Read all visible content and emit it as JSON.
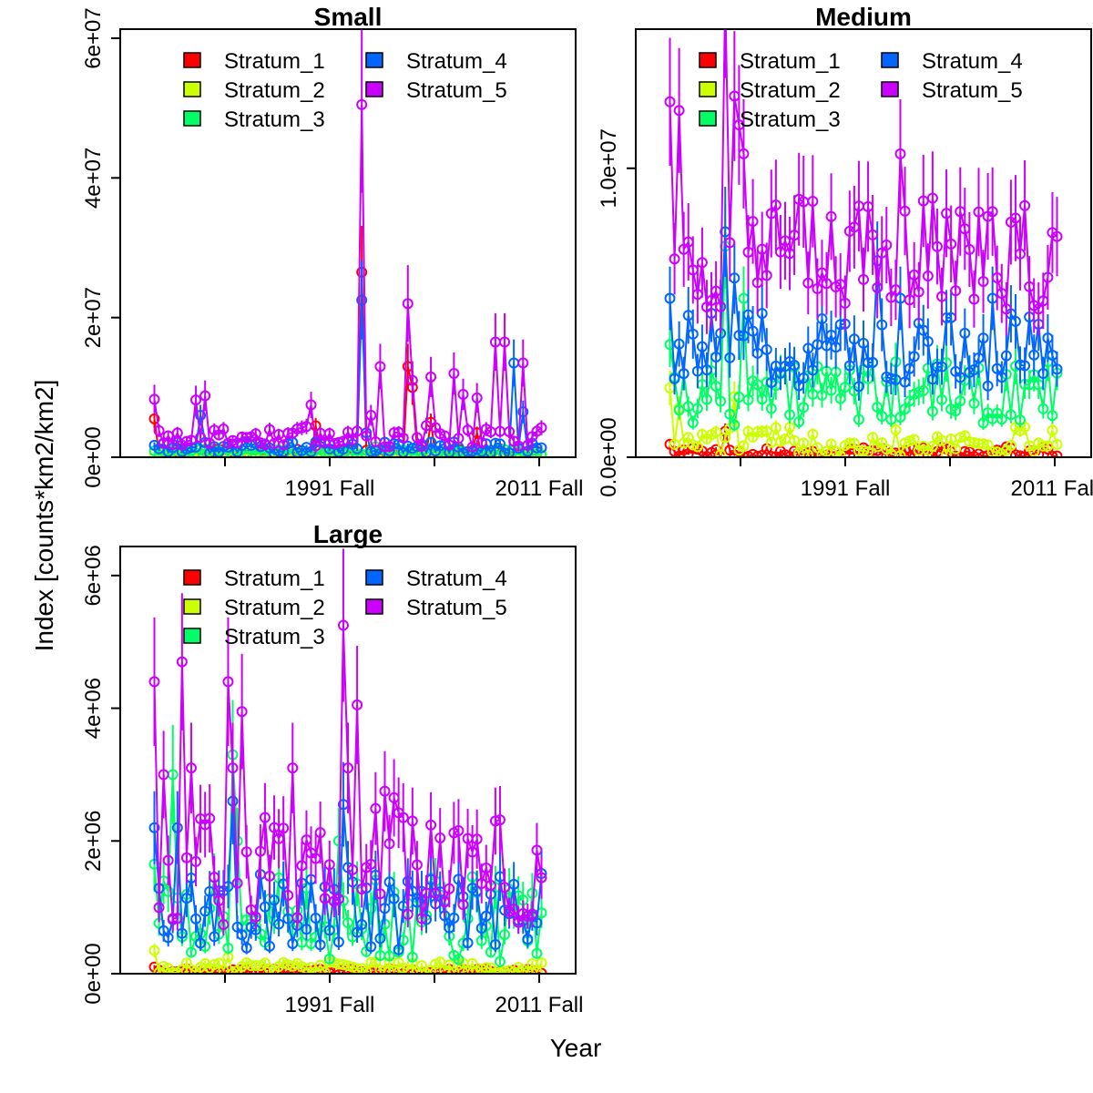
{
  "chart_data": {
    "type": "scatter",
    "xlabel": "Year",
    "ylabel": "Index [counts*km2/km2]",
    "x_ticks": [
      "1991 Fall",
      "2011 Fall"
    ],
    "legend": {
      "placement": "top",
      "entries": [
        {
          "name": "Stratum_1",
          "color": "#ff0000"
        },
        {
          "name": "Stratum_2",
          "color": "#ccff00"
        },
        {
          "name": "Stratum_3",
          "color": "#00ff66"
        },
        {
          "name": "Stratum_4",
          "color": "#0066ff"
        },
        {
          "name": "Stratum_5",
          "color": "#cc00ff"
        }
      ]
    },
    "panels": [
      {
        "title": "Small",
        "ylim": [
          0,
          60000000
        ],
        "y_ticks": [
          {
            "value": 0,
            "label": "0e+00"
          },
          {
            "value": 20000000,
            "label": "2e+07"
          },
          {
            "value": 40000000,
            "label": "4e+07"
          },
          {
            "value": 60000000,
            "label": "6e+07"
          }
        ],
        "series": [
          {
            "name": "Stratum_1",
            "color": "#ff0000",
            "base": 600000,
            "noise": 600000,
            "spikes": [
              [
                0,
                5500000
              ],
              [
                35,
                4500000
              ],
              [
                45,
                26500000
              ],
              [
                55,
                13000000
              ],
              [
                56,
                10000000
              ],
              [
                60,
                5000000
              ],
              [
                70,
                3500000
              ]
            ],
            "err": 0.25
          },
          {
            "name": "Stratum_2",
            "color": "#ccff00",
            "base": 400000,
            "noise": 300000,
            "spikes": [],
            "err": 0.25
          },
          {
            "name": "Stratum_3",
            "color": "#00ff66",
            "base": 700000,
            "noise": 500000,
            "spikes": [
              [
                48,
                1500000
              ]
            ],
            "err": 0.25
          },
          {
            "name": "Stratum_4",
            "color": "#0066ff",
            "base": 1300000,
            "noise": 900000,
            "spikes": [
              [
                10,
                6000000
              ],
              [
                45,
                22500000
              ],
              [
                46,
                3500000
              ],
              [
                78,
                13500000
              ],
              [
                80,
                6500000
              ]
            ],
            "err": 0.25
          },
          {
            "name": "Stratum_5",
            "color": "#cc00ff",
            "base": 2800000,
            "noise": 1600000,
            "spikes": [
              [
                0,
                8300000
              ],
              [
                9,
                8200000
              ],
              [
                11,
                8800000
              ],
              [
                34,
                7500000
              ],
              [
                45,
                50500000
              ],
              [
                47,
                6000000
              ],
              [
                49,
                13000000
              ],
              [
                55,
                22000000
              ],
              [
                56,
                11000000
              ],
              [
                60,
                11500000
              ],
              [
                65,
                12000000
              ],
              [
                67,
                9000000
              ],
              [
                70,
                8500000
              ],
              [
                74,
                16500000
              ],
              [
                76,
                16500000
              ],
              [
                80,
                13500000
              ]
            ],
            "err": 0.25
          }
        ]
      },
      {
        "title": "Medium",
        "ylim": [
          0,
          14500000
        ],
        "y_ticks": [
          {
            "value": 0,
            "label": "0.0e+00"
          },
          {
            "value": 10000000,
            "label": "1.0e+07"
          }
        ],
        "series": [
          {
            "name": "Stratum_1",
            "color": "#ff0000",
            "base": 150000,
            "noise": 200000,
            "spikes": [
              [
                0,
                450000
              ],
              [
                12,
                900000
              ]
            ],
            "err": 0.3
          },
          {
            "name": "Stratum_2",
            "color": "#ccff00",
            "base": 500000,
            "noise": 500000,
            "spikes": [
              [
                0,
                2400000
              ],
              [
                2,
                1700000
              ],
              [
                14,
                2100000
              ]
            ],
            "err": 0.25
          },
          {
            "name": "Stratum_3",
            "color": "#00ff66",
            "base": 2100000,
            "noise": 1100000,
            "spikes": [
              [
                0,
                3900000
              ],
              [
                12,
                7300000
              ],
              [
                16,
                5500000
              ]
            ],
            "err": 0.2
          },
          {
            "name": "Stratum_4",
            "color": "#0066ff",
            "base": 3600000,
            "noise": 1300000,
            "spikes": [
              [
                0,
                5500000
              ],
              [
                12,
                7800000
              ],
              [
                14,
                6200000
              ],
              [
                45,
                6800000
              ],
              [
                50,
                5500000
              ],
              [
                70,
                5500000
              ]
            ],
            "err": 0.2
          },
          {
            "name": "Stratum_5",
            "color": "#cc00ff",
            "base": 6800000,
            "noise": 2000000,
            "spikes": [
              [
                0,
                12300000
              ],
              [
                2,
                12000000
              ],
              [
                12,
                16000000
              ],
              [
                14,
                12500000
              ],
              [
                15,
                11500000
              ],
              [
                16,
                10500000
              ],
              [
                50,
                10500000
              ],
              [
                70,
                8500000
              ]
            ],
            "err": 0.18
          }
        ]
      },
      {
        "title": "Large",
        "ylim": [
          0,
          6300000
        ],
        "y_ticks": [
          {
            "value": 0,
            "label": "0e+00"
          },
          {
            "value": 2000000,
            "label": "2e+06"
          },
          {
            "value": 4000000,
            "label": "4e+06"
          },
          {
            "value": 6000000,
            "label": "6e+06"
          }
        ],
        "series": [
          {
            "name": "Stratum_1",
            "color": "#ff0000",
            "base": 30000,
            "noise": 40000,
            "spikes": [
              [
                0,
                100000
              ]
            ],
            "err": 0.3
          },
          {
            "name": "Stratum_2",
            "color": "#ccff00",
            "base": 80000,
            "noise": 90000,
            "spikes": [
              [
                0,
                350000
              ],
              [
                16,
                250000
              ],
              [
                42,
                120000
              ]
            ],
            "err": 0.3
          },
          {
            "name": "Stratum_3",
            "color": "#00ff66",
            "base": 750000,
            "noise": 650000,
            "spikes": [
              [
                0,
                1650000
              ],
              [
                4,
                3000000
              ],
              [
                17,
                3300000
              ],
              [
                18,
                2000000
              ],
              [
                40,
                2000000
              ],
              [
                74,
                1300000
              ]
            ],
            "err": 0.25
          },
          {
            "name": "Stratum_4",
            "color": "#0066ff",
            "base": 850000,
            "noise": 600000,
            "spikes": [
              [
                0,
                2200000
              ],
              [
                5,
                2200000
              ],
              [
                17,
                2600000
              ],
              [
                41,
                2550000
              ],
              [
                42,
                1600000
              ],
              [
                80,
                800000
              ]
            ],
            "err": 0.25
          },
          {
            "name": "Stratum_5",
            "color": "#cc00ff",
            "base": 1500000,
            "noise": 900000,
            "spikes": [
              [
                0,
                4400000
              ],
              [
                2,
                3000000
              ],
              [
                6,
                4700000
              ],
              [
                8,
                3100000
              ],
              [
                16,
                4400000
              ],
              [
                17,
                3100000
              ],
              [
                19,
                3950000
              ],
              [
                30,
                3100000
              ],
              [
                41,
                5250000
              ],
              [
                42,
                3100000
              ],
              [
                44,
                4050000
              ],
              [
                50,
                2750000
              ],
              [
                52,
                2650000
              ],
              [
                56,
                2300000
              ],
              [
                74,
                2300000
              ],
              [
                76,
                1300000
              ]
            ],
            "err": 0.22
          }
        ]
      }
    ]
  }
}
